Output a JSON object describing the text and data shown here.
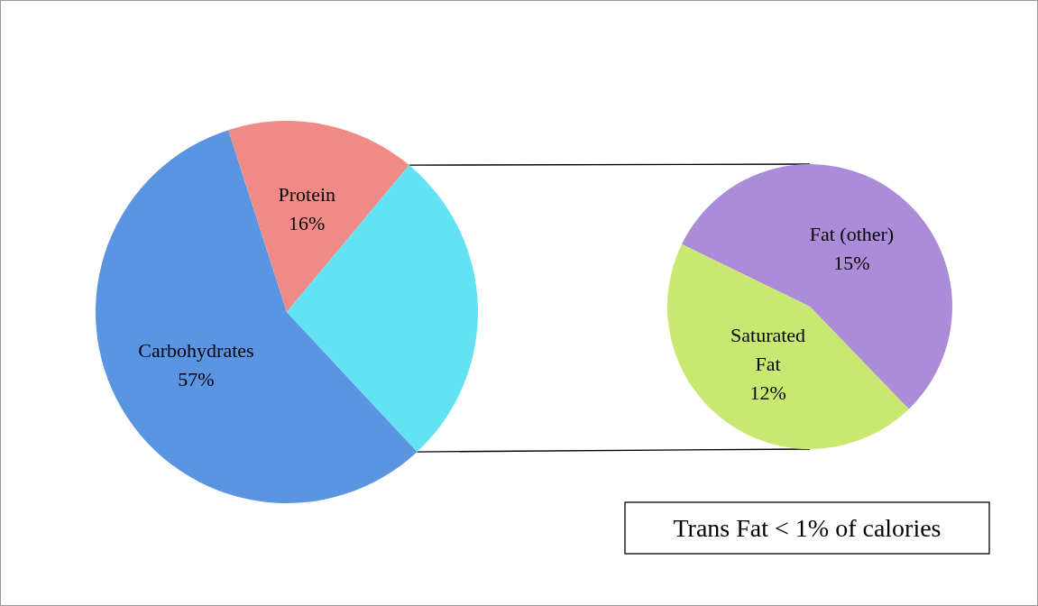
{
  "chart_data": [
    {
      "type": "pie",
      "categories": [
        "Carbohydrates",
        "Protein",
        null
      ],
      "values": [
        57,
        16,
        27
      ],
      "colors": [
        "#5b95e2",
        "#f08a86",
        "#62e2f2"
      ],
      "value_labels": [
        "57%",
        "16%",
        null
      ]
    },
    {
      "type": "pie",
      "categories": [
        "Fat (other)",
        "Saturated Fat"
      ],
      "values": [
        15,
        12
      ],
      "colors": [
        "#ac8cd8",
        "#c8e872"
      ],
      "value_labels": [
        "15%",
        "12%"
      ],
      "annotations": [
        "Trans Fat < 1% of calories"
      ]
    }
  ]
}
